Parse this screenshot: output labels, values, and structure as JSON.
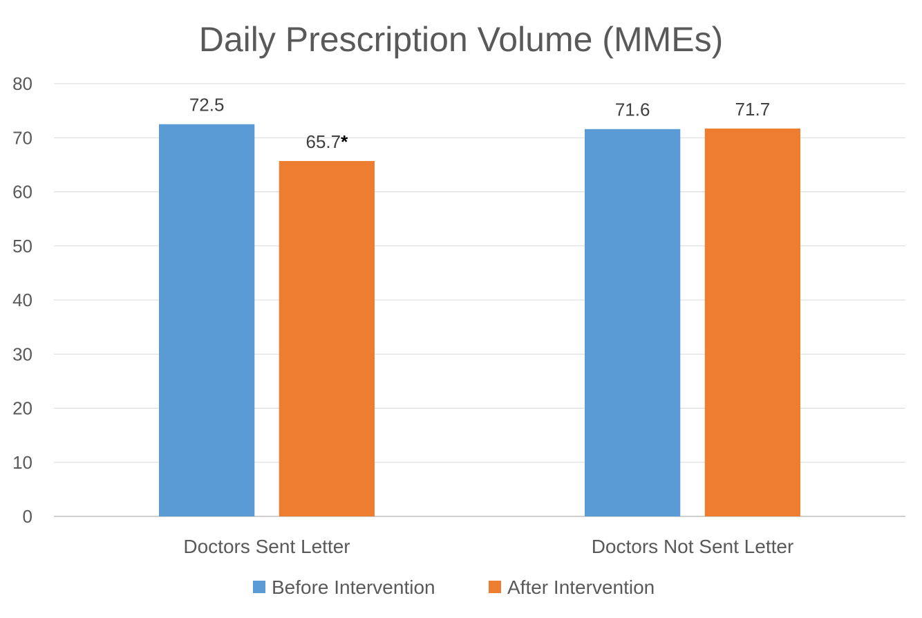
{
  "chart_data": {
    "type": "bar",
    "title": "Daily Prescription Volume (MMEs)",
    "xlabel": "",
    "ylabel": "",
    "categories": [
      "Doctors Sent Letter",
      "Doctors Not Sent Letter"
    ],
    "series": [
      {
        "name": "Before Intervention",
        "color": "#5B9BD5",
        "values": [
          72.5,
          71.6
        ],
        "labels": [
          "72.5",
          "71.6"
        ]
      },
      {
        "name": "After Intervention",
        "color": "#ED7D31",
        "values": [
          65.7,
          71.7
        ],
        "labels": [
          "65.7",
          "71.7"
        ],
        "label_markers": [
          "*",
          ""
        ]
      }
    ],
    "ylim": [
      0,
      80
    ],
    "yticks": [
      "0",
      "10",
      "20",
      "30",
      "40",
      "50",
      "60",
      "70",
      "80"
    ],
    "grid": true,
    "legend_position": "bottom"
  }
}
